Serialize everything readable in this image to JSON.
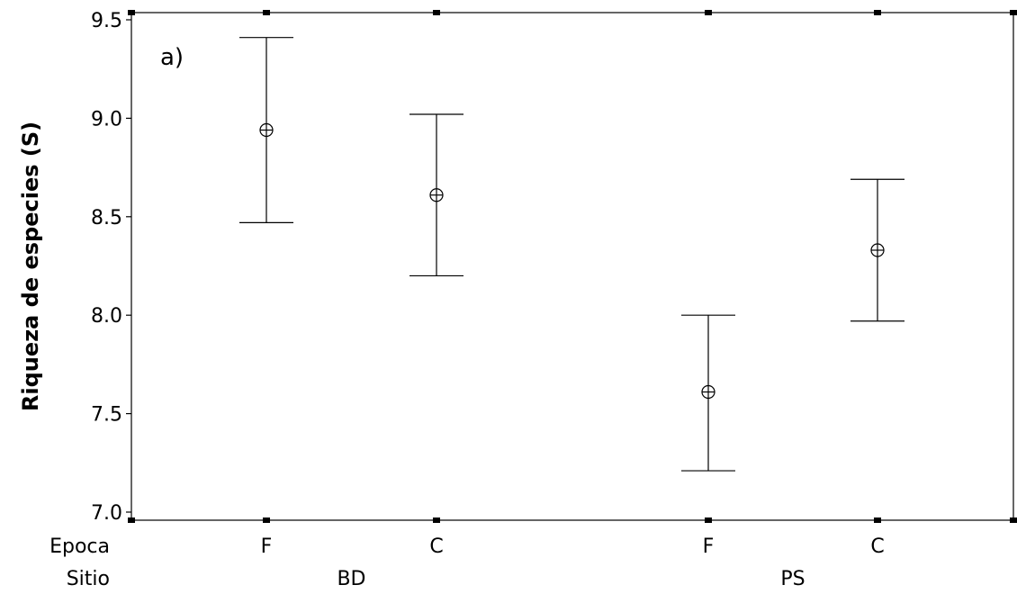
{
  "chart_data": {
    "type": "scatter",
    "subtype": "interval-plot",
    "panel_label": "a)",
    "ylabel": "Riqueza de especies (S)",
    "ylim": [
      7.0,
      9.5
    ],
    "yticks": [
      7.0,
      7.5,
      8.0,
      8.5,
      9.0,
      9.5
    ],
    "ytick_labels": [
      "7.0",
      "7.5",
      "8.0",
      "8.5",
      "9.0",
      "9.5"
    ],
    "x_row_labels": {
      "epoca": "Epoca",
      "sitio": "Sitio"
    },
    "groups": [
      {
        "sitio": "BD",
        "epocas": [
          "F",
          "C"
        ]
      },
      {
        "sitio": "PS",
        "epocas": [
          "F",
          "C"
        ]
      }
    ],
    "points": [
      {
        "sitio": "BD",
        "epoca": "F",
        "mean": 8.94,
        "lower": 8.47,
        "upper": 9.41
      },
      {
        "sitio": "BD",
        "epoca": "C",
        "mean": 8.61,
        "lower": 8.2,
        "upper": 9.02
      },
      {
        "sitio": "PS",
        "epoca": "F",
        "mean": 7.61,
        "lower": 7.21,
        "upper": 8.0
      },
      {
        "sitio": "PS",
        "epoca": "C",
        "mean": 8.33,
        "lower": 7.97,
        "upper": 8.69
      }
    ],
    "grid": false,
    "legend": "none"
  }
}
